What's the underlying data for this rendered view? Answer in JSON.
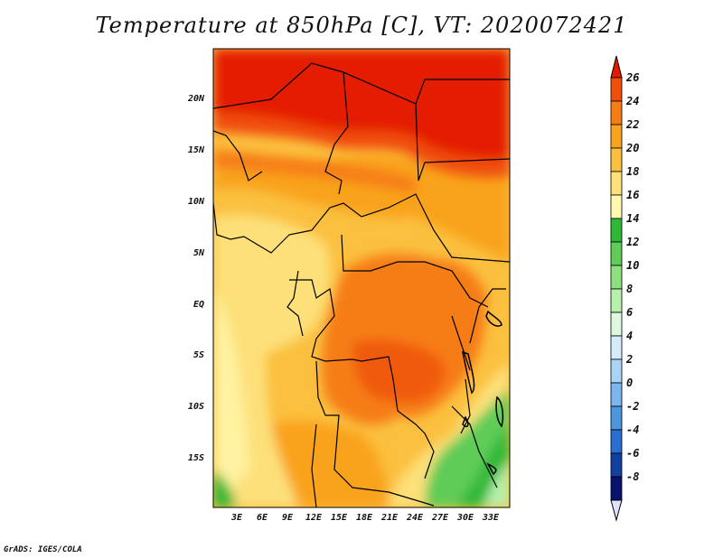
{
  "title": "Temperature at 850hPa [C], VT: 2020072421",
  "footer": "GrADS: IGES/COLA",
  "map": {
    "lat_labels": [
      "20N",
      "15N",
      "10N",
      "5N",
      "EQ",
      "5S",
      "10S",
      "15S"
    ],
    "lon_labels": [
      "3E",
      "6E",
      "9E",
      "12E",
      "15E",
      "18E",
      "21E",
      "24E",
      "27E",
      "30E",
      "33E"
    ]
  },
  "colorbar": {
    "labels": [
      "26",
      "24",
      "22",
      "20",
      "18",
      "16",
      "14",
      "12",
      "10",
      "8",
      "6",
      "4",
      "2",
      "0",
      "-2",
      "-4",
      "-6",
      "-8"
    ],
    "colors": [
      "#e41a00",
      "#f04e0a",
      "#f67d14",
      "#f9a31e",
      "#fbc040",
      "#fde07a",
      "#fff8b0",
      "#2fb838",
      "#5fcc58",
      "#8ce07e",
      "#b6f0ab",
      "#dff8e0",
      "#d6ecfb",
      "#a9d4f6",
      "#7bb6ee",
      "#4e95e0",
      "#2a6fd0",
      "#1140a0",
      "#0a1270"
    ],
    "low_color": "#e0e0ff"
  }
}
